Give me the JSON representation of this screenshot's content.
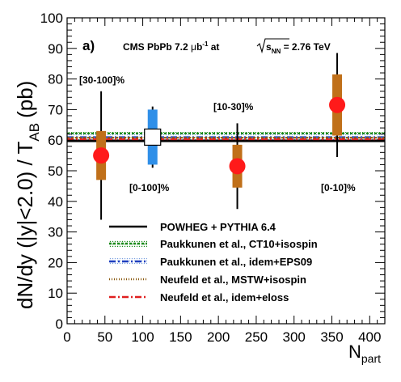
{
  "chart_data": {
    "type": "scatter",
    "xlabel_main": "N",
    "xlabel_sub": "part",
    "ylabel_main": "dN/dy (|y|<2.0) / T",
    "ylabel_sub": "AB",
    "ylabel_unit": "(pb)",
    "xlim": [
      0,
      420
    ],
    "ylim": [
      0,
      100
    ],
    "x_ticks": [
      0,
      50,
      100,
      150,
      200,
      250,
      300,
      350,
      400
    ],
    "y_ticks": [
      0,
      10,
      20,
      30,
      40,
      50,
      60,
      70,
      80,
      90,
      100
    ],
    "panel_label": "a)",
    "experiment": {
      "prefix": "CMS PbPb 7.2 ",
      "mu": "μ",
      "b": "b",
      "sup": "-1",
      "at": " at",
      "s": "s",
      "nn": "NN",
      "energy": " = 2.76 TeV"
    },
    "points": [
      {
        "label": "[30-100]%",
        "x": 45,
        "y": 55,
        "stat_err": 8,
        "syst_err": 21,
        "marker": "red-circle"
      },
      {
        "label": "[10-30]%",
        "x": 225,
        "y": 51.5,
        "stat_err": 7,
        "syst_err": 14,
        "marker": "red-circle"
      },
      {
        "label": "[0-10]%",
        "x": 357,
        "y": 71.5,
        "stat_err": 10,
        "syst_err": 17,
        "marker": "red-circle"
      },
      {
        "label": "[0-100]%",
        "x": 113,
        "y": 61,
        "stat_err": 9,
        "syst_err": 10,
        "marker": "open-square"
      }
    ],
    "series": [
      {
        "name": "POWHEG + PYTHIA 6.4",
        "y": 59.8,
        "band": 1.2,
        "color": "#000000",
        "style": "solid"
      },
      {
        "name": "Paukkunen et al., CT10+isospin",
        "y": 62.2,
        "band": 1.0,
        "color": "#1a8a1a",
        "style": "dotted"
      },
      {
        "name": "Paukkunen et al., idem+EPS09",
        "y": 61.0,
        "band": 2.5,
        "color": "#1f3fbf",
        "style": "dashdot"
      },
      {
        "name": "Neufeld et al., MSTW+isospin",
        "y": 60.8,
        "band": 0.6,
        "color": "#8a5a10",
        "style": "dotted"
      },
      {
        "name": "Neufeld et al., idem+eloss",
        "y": 60.3,
        "band": 0.0,
        "color": "#e02020",
        "style": "dashdot"
      }
    ],
    "colors": {
      "marker_fill": "#ff1a1a",
      "syst_box": "#c0701a",
      "mb_box": "#2f8fe8"
    }
  }
}
